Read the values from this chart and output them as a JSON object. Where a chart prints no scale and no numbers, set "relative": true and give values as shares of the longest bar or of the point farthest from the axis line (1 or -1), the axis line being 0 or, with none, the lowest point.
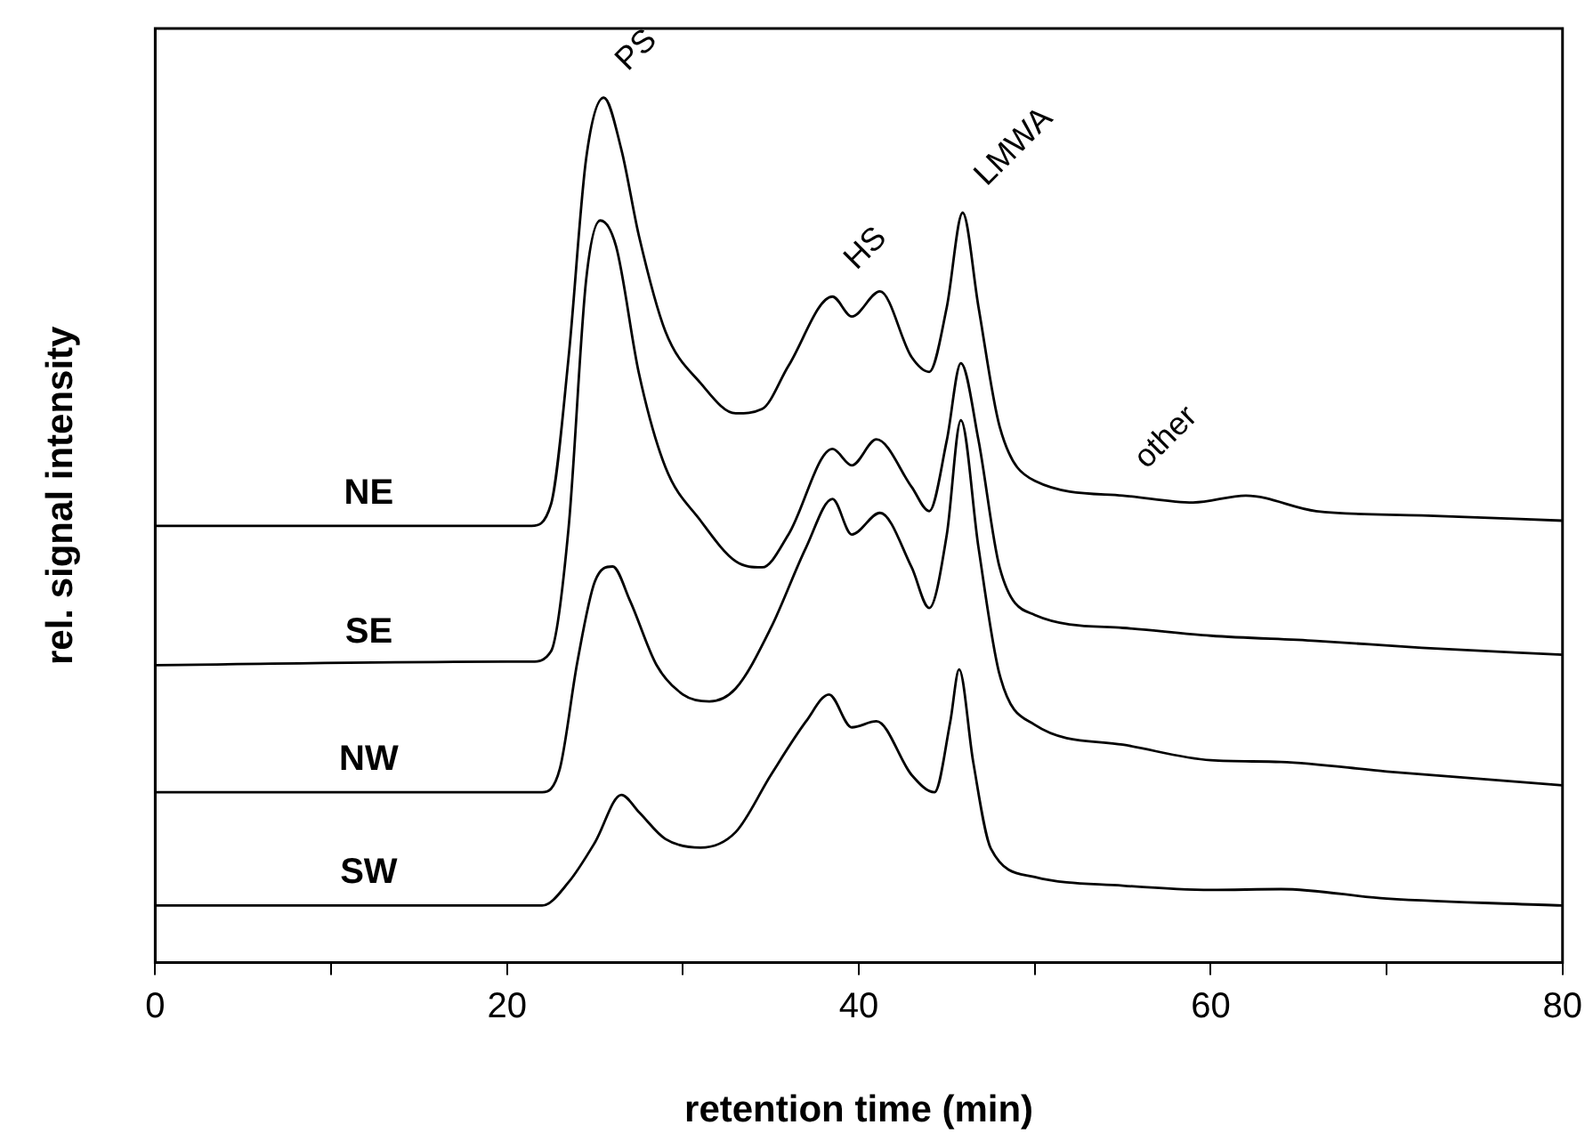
{
  "chart_data": {
    "type": "line",
    "relative": true,
    "xlabel": "retention time (min)",
    "ylabel": "rel. signal intensity",
    "xlim": [
      0,
      80
    ],
    "xticks": [
      0,
      {
        "value": 10,
        "label": null
      },
      20,
      {
        "value": 30,
        "label": null
      },
      40,
      {
        "value": 50,
        "label": null
      },
      60,
      {
        "value": 70,
        "label": null
      },
      80
    ],
    "grid": false,
    "legend": false,
    "marker": "none",
    "line_style": "solid",
    "annotations": [
      {
        "text": "PS",
        "x": 25.5,
        "y": 1.0
      },
      {
        "text": "HS",
        "x": 38.5,
        "y": 0.77
      },
      {
        "text": "LMWA",
        "x": 45.9,
        "y": 0.867
      },
      {
        "text": "other",
        "x": 55,
        "y": 0.54
      }
    ],
    "series": [
      {
        "name": "NE",
        "color": "#000000",
        "x": [
          0,
          10,
          21.4,
          22.5,
          23.5,
          24.5,
          25.5,
          26.5,
          27.5,
          29,
          31,
          33,
          34.5,
          36,
          38.5,
          39.6,
          41.2,
          43,
          44,
          45,
          45.9,
          46.8,
          48,
          50,
          55,
          59,
          62,
          66,
          72,
          80
        ],
        "values": [
          0.505,
          0.505,
          0.505,
          0.53,
          0.7,
          0.93,
          1.0,
          0.94,
          0.84,
          0.73,
          0.67,
          0.635,
          0.64,
          0.69,
          0.77,
          0.747,
          0.776,
          0.7,
          0.683,
          0.758,
          0.867,
          0.758,
          0.62,
          0.557,
          0.54,
          0.532,
          0.54,
          0.522,
          0.517,
          0.511
        ]
      },
      {
        "name": "SE",
        "color": "#000000",
        "x": [
          0,
          20,
          21.4,
          22.5,
          23.5,
          24.5,
          25.3,
          26.2,
          27.5,
          29,
          31,
          33,
          34.5,
          36,
          38.5,
          39.6,
          41,
          43,
          44,
          45,
          45.8,
          46.8,
          48,
          50,
          55,
          60,
          66,
          72,
          80
        ],
        "values": [
          0.344,
          0.348,
          0.348,
          0.36,
          0.503,
          0.79,
          0.858,
          0.828,
          0.681,
          0.573,
          0.511,
          0.464,
          0.457,
          0.495,
          0.594,
          0.575,
          0.605,
          0.55,
          0.522,
          0.604,
          0.693,
          0.604,
          0.457,
          0.402,
          0.387,
          0.378,
          0.372,
          0.364,
          0.356
        ]
      },
      {
        "name": "NW",
        "color": "#000000",
        "x": [
          0,
          10,
          22,
          23,
          24,
          25,
          26,
          27,
          28.5,
          30,
          31.5,
          33,
          35,
          37,
          38.5,
          39.6,
          41.2,
          43,
          44,
          45,
          45.8,
          46.8,
          48,
          50,
          55,
          60,
          64,
          70,
          80
        ],
        "values": [
          0.197,
          0.197,
          0.197,
          0.224,
          0.348,
          0.441,
          0.458,
          0.418,
          0.344,
          0.31,
          0.302,
          0.317,
          0.387,
          0.48,
          0.536,
          0.495,
          0.52,
          0.457,
          0.41,
          0.495,
          0.627,
          0.48,
          0.333,
          0.275,
          0.252,
          0.234,
          0.232,
          0.221,
          0.205
        ]
      },
      {
        "name": "SW",
        "color": "#000000",
        "x": [
          0,
          10,
          22,
          23.5,
          25,
          26.5,
          27.5,
          29,
          31,
          33,
          35,
          37,
          38.3,
          39.6,
          41,
          43,
          44.3,
          45.2,
          45.7,
          46.5,
          47.5,
          50,
          55,
          60,
          64,
          70,
          80
        ],
        "values": [
          0.066,
          0.066,
          0.066,
          0.093,
          0.139,
          0.194,
          0.174,
          0.143,
          0.133,
          0.151,
          0.217,
          0.279,
          0.31,
          0.272,
          0.279,
          0.217,
          0.197,
          0.279,
          0.339,
          0.232,
          0.132,
          0.099,
          0.089,
          0.084,
          0.085,
          0.074,
          0.066
        ]
      }
    ]
  }
}
